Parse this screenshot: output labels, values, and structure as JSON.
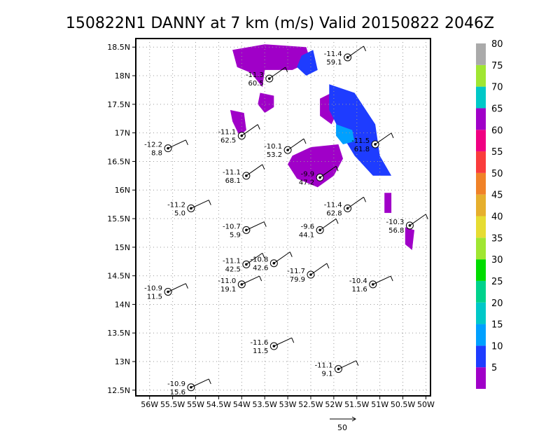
{
  "title": "150822N1 DANNY at 7 km (m/s) Valid 20150822 2046Z",
  "chart_data": {
    "type": "scatter",
    "title": "150822N1 DANNY at 7 km (m/s) Valid 20150822 2046Z",
    "xlabel": "",
    "ylabel": "",
    "xlim": [
      -56.3,
      -49.9
    ],
    "ylim": [
      12.4,
      18.65
    ],
    "grid": true,
    "x_ticks": [
      "56W",
      "55.5W",
      "55W",
      "54.5W",
      "54W",
      "53.5W",
      "53W",
      "52.5W",
      "52W",
      "51.5W",
      "51W",
      "50.5W",
      "50W"
    ],
    "y_ticks": [
      "18.5N",
      "18N",
      "17.5N",
      "17N",
      "16.5N",
      "16N",
      "15.5N",
      "15N",
      "14.5N",
      "14N",
      "13.5N",
      "13N",
      "12.5N"
    ],
    "colorbar": {
      "levels": [
        "5",
        "10",
        "15",
        "20",
        "25",
        "30",
        "35",
        "40",
        "45",
        "50",
        "55",
        "60",
        "65",
        "70",
        "75",
        "80"
      ],
      "colors": [
        "#a000c8",
        "#1e3cff",
        "#00a0ff",
        "#00c8c8",
        "#00d28c",
        "#00dc00",
        "#a0e632",
        "#e6dc32",
        "#e6af2d",
        "#f08228",
        "#fa3c3c",
        "#f00082",
        "#a000c8",
        "#00c8c8",
        "#a0e632",
        "#aaaaaa"
      ]
    },
    "stations": [
      {
        "lon": -51.7,
        "lat": 18.32,
        "temp": "-11.4",
        "speed": "59.1"
      },
      {
        "lon": -53.4,
        "lat": 17.95,
        "temp": "-11.3",
        "speed": "60.5"
      },
      {
        "lon": -54.0,
        "lat": 16.95,
        "temp": "-11.1",
        "speed": "62.5"
      },
      {
        "lon": -55.6,
        "lat": 16.73,
        "temp": "-12.2",
        "speed": "8.8"
      },
      {
        "lon": -53.0,
        "lat": 16.7,
        "temp": "-10.1",
        "speed": "53.2"
      },
      {
        "lon": -51.1,
        "lat": 16.8,
        "temp": "-11.5",
        "speed": "61.8"
      },
      {
        "lon": -52.3,
        "lat": 16.22,
        "temp": "-9.9",
        "speed": "47.2"
      },
      {
        "lon": -53.9,
        "lat": 16.25,
        "temp": "-11.1",
        "speed": "68.1"
      },
      {
        "lon": -55.1,
        "lat": 15.68,
        "temp": "-11.2",
        "speed": "5.0"
      },
      {
        "lon": -51.7,
        "lat": 15.68,
        "temp": "-11.4",
        "speed": "62.8"
      },
      {
        "lon": -50.35,
        "lat": 15.38,
        "temp": "-10.3",
        "speed": "56.8"
      },
      {
        "lon": -53.9,
        "lat": 15.3,
        "temp": "-10.7",
        "speed": "5.9"
      },
      {
        "lon": -52.3,
        "lat": 15.3,
        "temp": "-9.6",
        "speed": "44.1"
      },
      {
        "lon": -53.9,
        "lat": 14.7,
        "temp": "-11.1",
        "speed": "42.5"
      },
      {
        "lon": -53.3,
        "lat": 14.72,
        "temp": "-10.8",
        "speed": "42.6"
      },
      {
        "lon": -52.5,
        "lat": 14.52,
        "temp": "-11.7",
        "speed": "79.9"
      },
      {
        "lon": -54.0,
        "lat": 14.35,
        "temp": "-11.0",
        "speed": "19.1"
      },
      {
        "lon": -51.15,
        "lat": 14.35,
        "temp": "-10.4",
        "speed": "11.6"
      },
      {
        "lon": -55.6,
        "lat": 14.22,
        "temp": "-10.9",
        "speed": "11.5"
      },
      {
        "lon": -53.3,
        "lat": 13.27,
        "temp": "-11.6",
        "speed": "11.5"
      },
      {
        "lon": -51.9,
        "lat": 12.87,
        "temp": "-11.1",
        "speed": "9.1"
      },
      {
        "lon": -55.1,
        "lat": 12.55,
        "temp": "-10.9",
        "speed": "15.6"
      }
    ],
    "reference_vector": "50",
    "shaded_regions": [
      {
        "level": "5",
        "color": "#a000c8",
        "polygon": [
          [
            -54.2,
            18.45
          ],
          [
            -53.5,
            18.55
          ],
          [
            -52.6,
            18.5
          ],
          [
            -52.5,
            18.25
          ],
          [
            -52.9,
            18.1
          ],
          [
            -53.5,
            18.1
          ],
          [
            -53.55,
            17.8
          ],
          [
            -53.8,
            18.05
          ],
          [
            -54.1,
            18.15
          ]
        ]
      },
      {
        "level": "5",
        "color": "#a000c8",
        "polygon": [
          [
            -54.25,
            17.4
          ],
          [
            -53.95,
            17.35
          ],
          [
            -53.9,
            17.05
          ],
          [
            -54.05,
            16.95
          ],
          [
            -54.2,
            17.2
          ]
        ]
      },
      {
        "level": "5",
        "color": "#a000c8",
        "polygon": [
          [
            -53.6,
            17.7
          ],
          [
            -53.3,
            17.65
          ],
          [
            -53.3,
            17.45
          ],
          [
            -53.5,
            17.35
          ],
          [
            -53.65,
            17.5
          ]
        ]
      },
      {
        "level": "5",
        "color": "#a000c8",
        "polygon": [
          [
            -52.9,
            16.6
          ],
          [
            -52.5,
            16.75
          ],
          [
            -51.9,
            16.8
          ],
          [
            -51.8,
            16.55
          ],
          [
            -52.0,
            16.25
          ],
          [
            -52.35,
            16.05
          ],
          [
            -52.8,
            16.2
          ],
          [
            -53.0,
            16.45
          ]
        ]
      },
      {
        "level": "5",
        "color": "#a000c8",
        "polygon": [
          [
            -52.3,
            17.6
          ],
          [
            -52.05,
            17.7
          ],
          [
            -51.9,
            17.4
          ],
          [
            -52.05,
            17.15
          ],
          [
            -52.3,
            17.3
          ]
        ]
      },
      {
        "level": "5",
        "color": "#a000c8",
        "polygon": [
          [
            -50.9,
            15.95
          ],
          [
            -50.75,
            15.95
          ],
          [
            -50.75,
            15.6
          ],
          [
            -50.9,
            15.6
          ]
        ]
      },
      {
        "level": "5",
        "color": "#a000c8",
        "polygon": [
          [
            -50.45,
            15.35
          ],
          [
            -50.25,
            15.3
          ],
          [
            -50.3,
            14.95
          ],
          [
            -50.45,
            15.05
          ]
        ]
      },
      {
        "level": "10",
        "color": "#1e3cff",
        "polygon": [
          [
            -52.7,
            18.35
          ],
          [
            -52.45,
            18.45
          ],
          [
            -52.35,
            18.1
          ],
          [
            -52.6,
            18.0
          ],
          [
            -52.8,
            18.15
          ]
        ]
      },
      {
        "level": "10",
        "color": "#1e3cff",
        "polygon": [
          [
            -52.1,
            17.85
          ],
          [
            -51.55,
            17.7
          ],
          [
            -51.1,
            17.15
          ],
          [
            -51.0,
            16.6
          ],
          [
            -50.75,
            16.25
          ],
          [
            -51.15,
            16.25
          ],
          [
            -51.55,
            16.6
          ],
          [
            -51.85,
            17.0
          ],
          [
            -52.1,
            17.4
          ]
        ]
      },
      {
        "level": "15",
        "color": "#00a0ff",
        "polygon": [
          [
            -51.95,
            17.15
          ],
          [
            -51.6,
            17.05
          ],
          [
            -51.55,
            16.85
          ],
          [
            -51.8,
            16.8
          ],
          [
            -51.95,
            16.95
          ]
        ]
      }
    ]
  }
}
